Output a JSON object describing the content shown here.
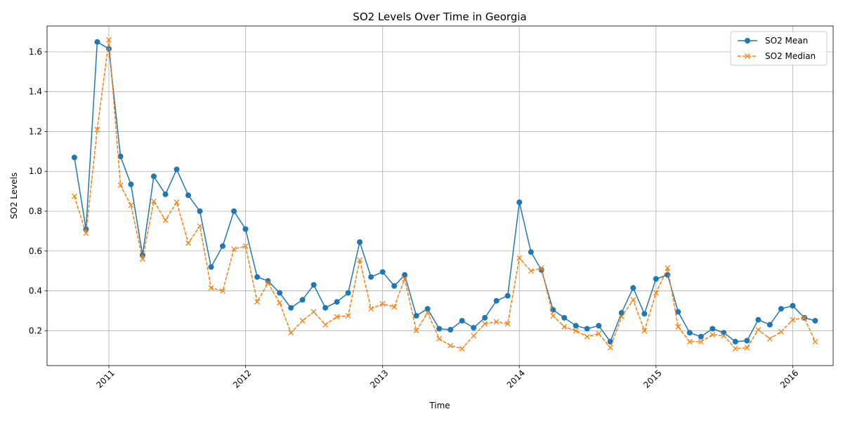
{
  "chart_data": {
    "type": "line",
    "title": "SO2 Levels Over Time in Georgia",
    "xlabel": "Time",
    "ylabel": "SO2 Levels",
    "x_ticks": [
      "2011",
      "2012",
      "2013",
      "2014",
      "2015",
      "2016"
    ],
    "y_ticks": [
      "0.2",
      "0.4",
      "0.6",
      "0.8",
      "1.0",
      "1.2",
      "1.4",
      "1.6"
    ],
    "ylim": [
      0.025,
      1.73
    ],
    "xlim": [
      "2010-07-20",
      "2016-04-18"
    ],
    "grid": true,
    "legend_position": "top-right",
    "x": [
      "2010-10-01",
      "2010-11-01",
      "2010-12-01",
      "2011-01-01",
      "2011-02-01",
      "2011-03-01",
      "2011-04-01",
      "2011-05-01",
      "2011-06-01",
      "2011-07-01",
      "2011-08-01",
      "2011-09-01",
      "2011-10-01",
      "2011-11-01",
      "2011-12-01",
      "2012-01-01",
      "2012-02-01",
      "2012-03-01",
      "2012-04-01",
      "2012-05-01",
      "2012-06-01",
      "2012-07-01",
      "2012-08-01",
      "2012-09-01",
      "2012-10-01",
      "2012-11-01",
      "2012-12-01",
      "2013-01-01",
      "2013-02-01",
      "2013-03-01",
      "2013-04-01",
      "2013-05-01",
      "2013-06-01",
      "2013-07-01",
      "2013-08-01",
      "2013-09-01",
      "2013-10-01",
      "2013-11-01",
      "2013-12-01",
      "2014-01-01",
      "2014-02-01",
      "2014-03-01",
      "2014-04-01",
      "2014-05-01",
      "2014-06-01",
      "2014-07-01",
      "2014-08-01",
      "2014-09-01",
      "2014-10-01",
      "2014-11-01",
      "2014-12-01",
      "2015-01-01",
      "2015-02-01",
      "2015-03-01",
      "2015-04-01",
      "2015-05-01",
      "2015-06-01",
      "2015-07-01",
      "2015-08-01",
      "2015-09-01",
      "2015-10-01",
      "2015-11-01",
      "2015-12-01",
      "2016-01-01",
      "2016-02-01",
      "2016-03-01"
    ],
    "series": [
      {
        "name": "SO2 Mean",
        "color": "#1f77b4",
        "marker": "circle",
        "line_style": "solid",
        "values": [
          1.07,
          0.71,
          1.65,
          1.615,
          1.075,
          0.935,
          0.58,
          0.975,
          0.885,
          1.01,
          0.88,
          0.8,
          0.52,
          0.625,
          0.8,
          0.71,
          0.47,
          0.45,
          0.39,
          0.315,
          0.355,
          0.43,
          0.315,
          0.345,
          0.39,
          0.645,
          0.47,
          0.495,
          0.425,
          0.48,
          0.275,
          0.31,
          0.21,
          0.205,
          0.25,
          0.215,
          0.265,
          0.35,
          0.375,
          0.845,
          0.595,
          0.505,
          0.305,
          0.265,
          0.225,
          0.21,
          0.225,
          0.145,
          0.29,
          0.415,
          0.285,
          0.46,
          0.48,
          0.295,
          0.19,
          0.17,
          0.21,
          0.19,
          0.145,
          0.15,
          0.255,
          0.23,
          0.31,
          0.325,
          0.265,
          0.25
        ]
      },
      {
        "name": "SO2 Median",
        "color": "#ff7f0e",
        "marker": "x",
        "line_style": "dashed",
        "values": [
          0.875,
          0.69,
          1.21,
          1.66,
          0.93,
          0.83,
          0.56,
          0.85,
          0.755,
          0.845,
          0.64,
          0.725,
          0.415,
          0.4,
          0.61,
          0.625,
          0.345,
          0.44,
          0.34,
          0.19,
          0.25,
          0.295,
          0.23,
          0.27,
          0.275,
          0.555,
          0.31,
          0.335,
          0.32,
          0.46,
          0.2,
          0.29,
          0.16,
          0.125,
          0.11,
          0.175,
          0.235,
          0.245,
          0.235,
          0.565,
          0.5,
          0.515,
          0.275,
          0.22,
          0.2,
          0.17,
          0.185,
          0.115,
          0.27,
          0.355,
          0.2,
          0.39,
          0.515,
          0.22,
          0.145,
          0.145,
          0.18,
          0.175,
          0.11,
          0.115,
          0.205,
          0.16,
          0.195,
          0.255,
          0.265,
          0.145
        ]
      }
    ]
  }
}
